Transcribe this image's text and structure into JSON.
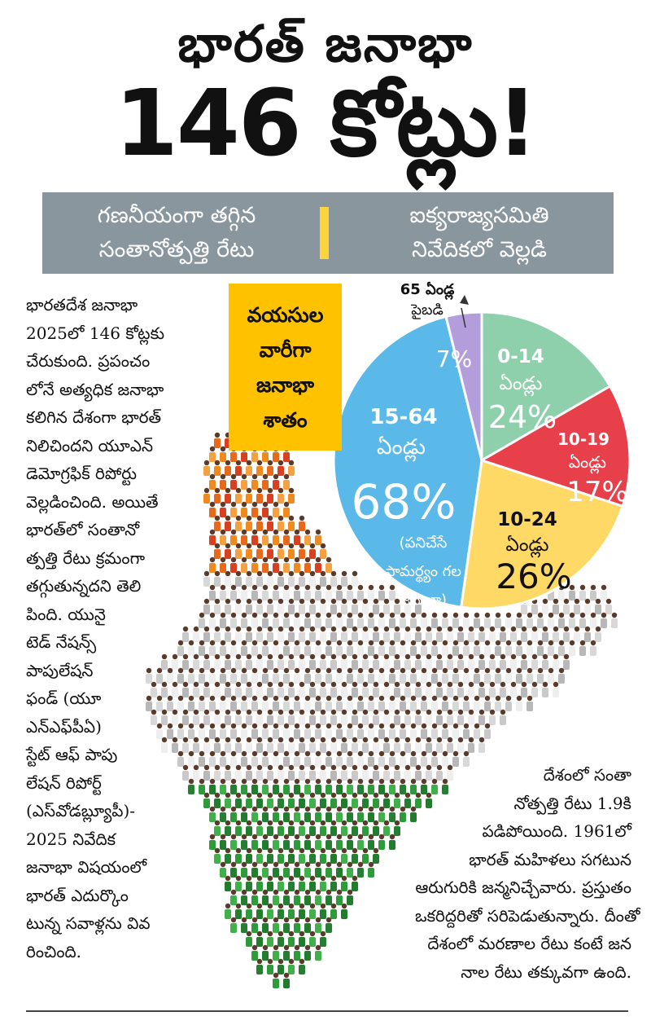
{
  "headline": {
    "line1": "భారత్ జనాభా",
    "line2": "146 కోట్లు!"
  },
  "banner": {
    "left": [
      "గణనీయంగా తగ్గిన",
      "సంతానోత్పత్తి రేటు"
    ],
    "right": [
      "ఐక్యరాజ్యసమితి",
      "నివేదికలో వెల్లడి"
    ],
    "divider_color": "#ffd33a"
  },
  "body_left": [
    "భారతదేశ జనాభా",
    "2025లో 146 కోట్లకు",
    "చేరుకుంది. ప్రపంచం",
    "లోనే అత్యధిక జనాభా",
    "కలిగిన దేశంగా భారత్",
    "నిలిచిందని యూఎన్",
    "డెమోగ్రఫిక్ రిపోర్టు",
    "వెల్లడించింది. అయితే",
    "భారత్‌లో సంతానో",
    "త్పత్తి రేటు క్రమంగా",
    "తగ్గుతున్నదని తెలి",
    "పింది. యునై",
    "టెడ్ నేషన్స్",
    "పాపులేషన్",
    "ఫండ్ (యూ",
    "ఎన్ఎఫ్‌పీఏ)",
    "స్టేట్ ఆఫ్ పాపు",
    "లేషన్ రిపోర్ట్",
    "(ఎస్‌వోడబ్ల్యూపీ)-",
    "2025 నివేదిక",
    "జనాభా విషయంలో",
    "భారత్ ఎదుర్కొం",
    "టున్న సవాళ్లను వివ",
    "రించింది."
  ],
  "body_right": [
    "దేశంలో సంతా",
    "నోత్పత్తి రేటు 1.9కి",
    "పడిపోయింది. 1961లో",
    "భారత్ మహిళలు సగటున",
    "ఆరుగురికి జన్మనిచ్చేవారు. ప్రస్తుతం",
    "ఒకరిద్దరితో సరిపెడుతున్నారు. దీంతో",
    "దేశంలో మరణాల రేటు కంటే జన",
    "నాల రేటు తక్కువగా ఉంది."
  ],
  "age_box": {
    "lines": [
      "వయసుల",
      "వారీగా",
      "జనాభా",
      "శాతం"
    ],
    "color": "#ffc200"
  },
  "chart_data": {
    "type": "pie",
    "title": "వయసుల వారీగా జనాభా శాతం",
    "slices": [
      {
        "label": [
          "0-14",
          "ఏండ్లు"
        ],
        "value": 24,
        "display": "24%",
        "color": "#8fd0ac"
      },
      {
        "label": [
          "10-19",
          "ఏండ్లు"
        ],
        "value": 17,
        "display": "17%",
        "color": "#e8404a"
      },
      {
        "label": [
          "10-24",
          "ఏండ్లు"
        ],
        "value": 26,
        "display": "26%",
        "color": "#ffd966"
      },
      {
        "label": [
          "15-64",
          "ఏండ్లు"
        ],
        "value": 68,
        "display": "68%",
        "note": [
          "(పనిచేసే",
          "సామర్థ్యం గల",
          "జనాభా)"
        ],
        "color": "#5ab9e8"
      },
      {
        "label": [
          "65 ఏండ్ల",
          "పైబడి"
        ],
        "value": 7,
        "display": "7%",
        "color": "#b39ddb"
      }
    ]
  },
  "colors": {
    "saffron": "#f08a1e",
    "white_figures": "#d8d8d8",
    "green": "#2e9b3a",
    "banner": "#8a969e"
  }
}
